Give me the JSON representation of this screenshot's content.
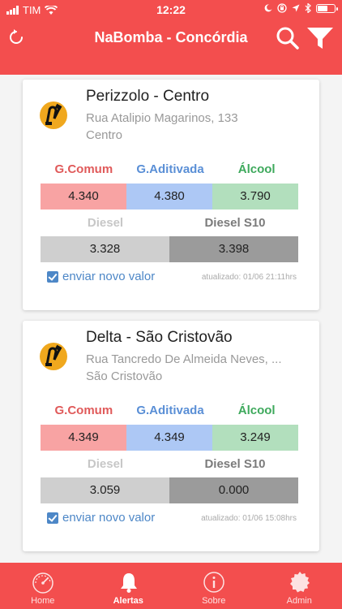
{
  "status_bar": {
    "carrier": "TIM",
    "time": "12:22"
  },
  "header": {
    "title": "NaBomba - Concórdia"
  },
  "stations": [
    {
      "name": "Perizzolo - Centro",
      "address_line1": "Rua Atalipio Magarinos, 133",
      "address_line2": "Centro",
      "fuel_labels": {
        "comum": "G.Comum",
        "aditivada": "G.Aditivada",
        "alcool": "Álcool",
        "diesel": "Diesel",
        "diesel_s10": "Diesel S10"
      },
      "prices": {
        "comum": "4.340",
        "aditivada": "4.380",
        "alcool": "3.790",
        "diesel": "3.328",
        "diesel_s10": "3.398"
      },
      "send_label": "enviar novo valor",
      "updated": "atualizado: 01/06 21:11hrs"
    },
    {
      "name": "Delta - São Cristovão",
      "address_line1": "Rua Tancredo De Almeida Neves, ...",
      "address_line2": "São Cristovão",
      "fuel_labels": {
        "comum": "G.Comum",
        "aditivada": "G.Aditivada",
        "alcool": "Álcool",
        "diesel": "Diesel",
        "diesel_s10": "Diesel S10"
      },
      "prices": {
        "comum": "4.349",
        "aditivada": "4.349",
        "alcool": "3.249",
        "diesel": "3.059",
        "diesel_s10": "0.000"
      },
      "send_label": "enviar novo valor",
      "updated": "atualizado: 01/06 15:08hrs"
    }
  ],
  "tabs": [
    {
      "label": "Home",
      "icon": "speedometer-icon"
    },
    {
      "label": "Alertas",
      "icon": "bell-icon"
    },
    {
      "label": "Sobre",
      "icon": "info-icon"
    },
    {
      "label": "Admin",
      "icon": "badge-icon"
    }
  ],
  "colors": {
    "primary": "#f34e4e",
    "comum": "#f8a3a3",
    "aditivada": "#adc8f5",
    "alcool": "#b2dfbd",
    "diesel": "#cfcfcf",
    "diesel_s10": "#9b9b9b"
  }
}
